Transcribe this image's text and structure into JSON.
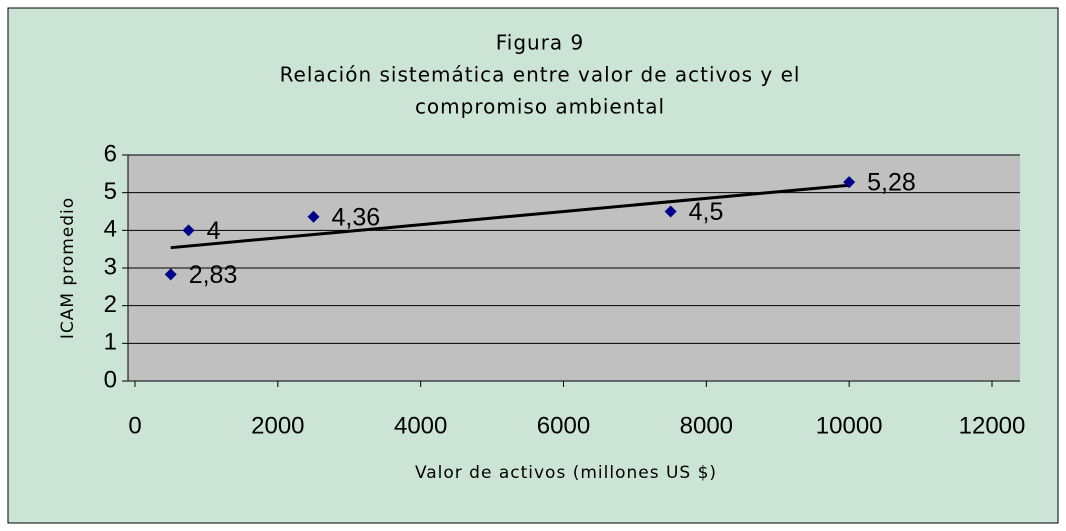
{
  "chart_data": {
    "type": "scatter",
    "title": [
      "Figura 9",
      "Relación sistemática entre valor de activos y el",
      "compromiso ambiental"
    ],
    "x_label": "Valor de activos (millones US $)",
    "y_label": "ICAM promedio",
    "x": [
      500,
      750,
      2500,
      7500,
      10000
    ],
    "values": [
      2.83,
      4,
      4.36,
      4.5,
      5.28
    ],
    "value_labels": [
      "2,83",
      "4",
      "4,36",
      "4,5",
      "5,28"
    ],
    "color": "#00008b",
    "trendline": true,
    "xlim": [
      0,
      12000
    ],
    "xticks": [
      0,
      2000,
      4000,
      6000,
      8000,
      10000,
      12000
    ],
    "ylim": [
      0,
      6
    ],
    "yticks": [
      0,
      1,
      2,
      3,
      4,
      5,
      6
    ],
    "grid": true
  }
}
